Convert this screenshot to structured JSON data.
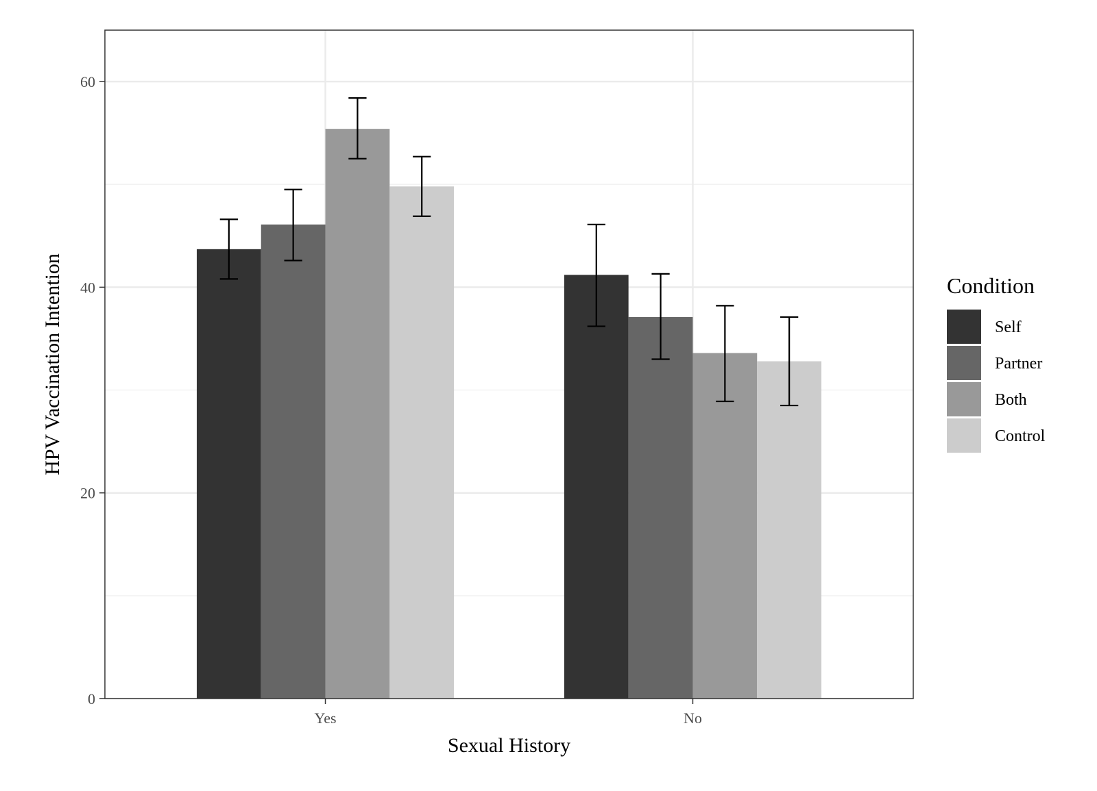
{
  "chart_data": {
    "type": "bar",
    "xlabel": "Sexual History",
    "ylabel": "HPV Vaccination Intention",
    "ylim": [
      0,
      65
    ],
    "yticks": [
      0,
      20,
      40,
      60
    ],
    "yminor": [
      10,
      30,
      50
    ],
    "grid": true,
    "legend_title": "Condition",
    "legend_position": "right",
    "categories": [
      "Yes",
      "No"
    ],
    "series": [
      {
        "name": "Self",
        "color": "#333333",
        "values": [
          43.7,
          41.2
        ],
        "err_low": [
          40.8,
          36.2
        ],
        "err_high": [
          46.6,
          46.1
        ]
      },
      {
        "name": "Partner",
        "color": "#666666",
        "values": [
          46.1,
          37.1
        ],
        "err_low": [
          42.6,
          33.0
        ],
        "err_high": [
          49.5,
          41.3
        ]
      },
      {
        "name": "Both",
        "color": "#999999",
        "values": [
          55.4,
          33.6
        ],
        "err_low": [
          52.5,
          28.9
        ],
        "err_high": [
          58.4,
          38.2
        ]
      },
      {
        "name": "Control",
        "color": "#cccccc",
        "values": [
          49.8,
          32.8
        ],
        "err_low": [
          46.9,
          28.5
        ],
        "err_high": [
          52.7,
          37.1
        ]
      }
    ]
  }
}
